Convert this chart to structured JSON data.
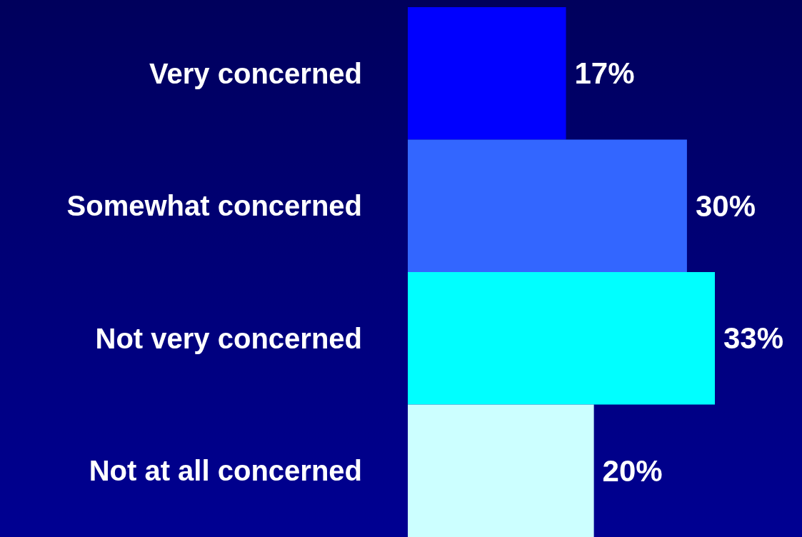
{
  "chart_data": {
    "type": "bar",
    "orientation": "horizontal",
    "categories": [
      "Very concerned",
      "Somewhat concerned",
      "Not very concerned",
      "Not at all concerned"
    ],
    "values": [
      17,
      30,
      33,
      20
    ],
    "colors": [
      "#0000ff",
      "#3366ff",
      "#00ffff",
      "#ccffff"
    ],
    "value_labels": [
      "17%",
      "30%",
      "33%",
      "20%"
    ]
  }
}
